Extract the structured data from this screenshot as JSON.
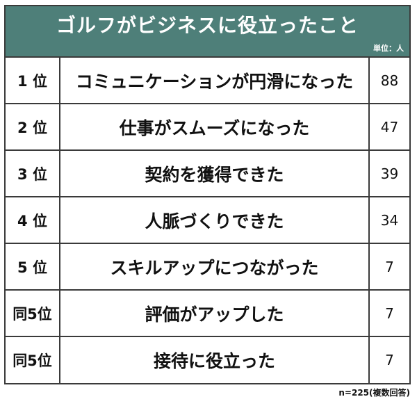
{
  "header": {
    "title": "ゴルフがビジネスに役立ったこと",
    "unit": "単位：人"
  },
  "rows": [
    {
      "rank": "1 位",
      "item": "コミュニケーションが円滑になった",
      "count": "88"
    },
    {
      "rank": "2 位",
      "item": "仕事がスムーズになった",
      "count": "47"
    },
    {
      "rank": "3 位",
      "item": "契約を獲得できた",
      "count": "39"
    },
    {
      "rank": "4 位",
      "item": "人脈づくりできた",
      "count": "34"
    },
    {
      "rank": "5 位",
      "item": "スキルアップにつながった",
      "count": "7"
    },
    {
      "rank": "同5位",
      "item": "評価がアップした",
      "count": "7"
    },
    {
      "rank": "同5位",
      "item": "接待に役立った",
      "count": "7"
    }
  ],
  "footnote": "n=225(複数回答)",
  "colors": {
    "header_bg": "#4e7f79",
    "header_text": "#ffffff",
    "border": "#3a3a3a"
  }
}
